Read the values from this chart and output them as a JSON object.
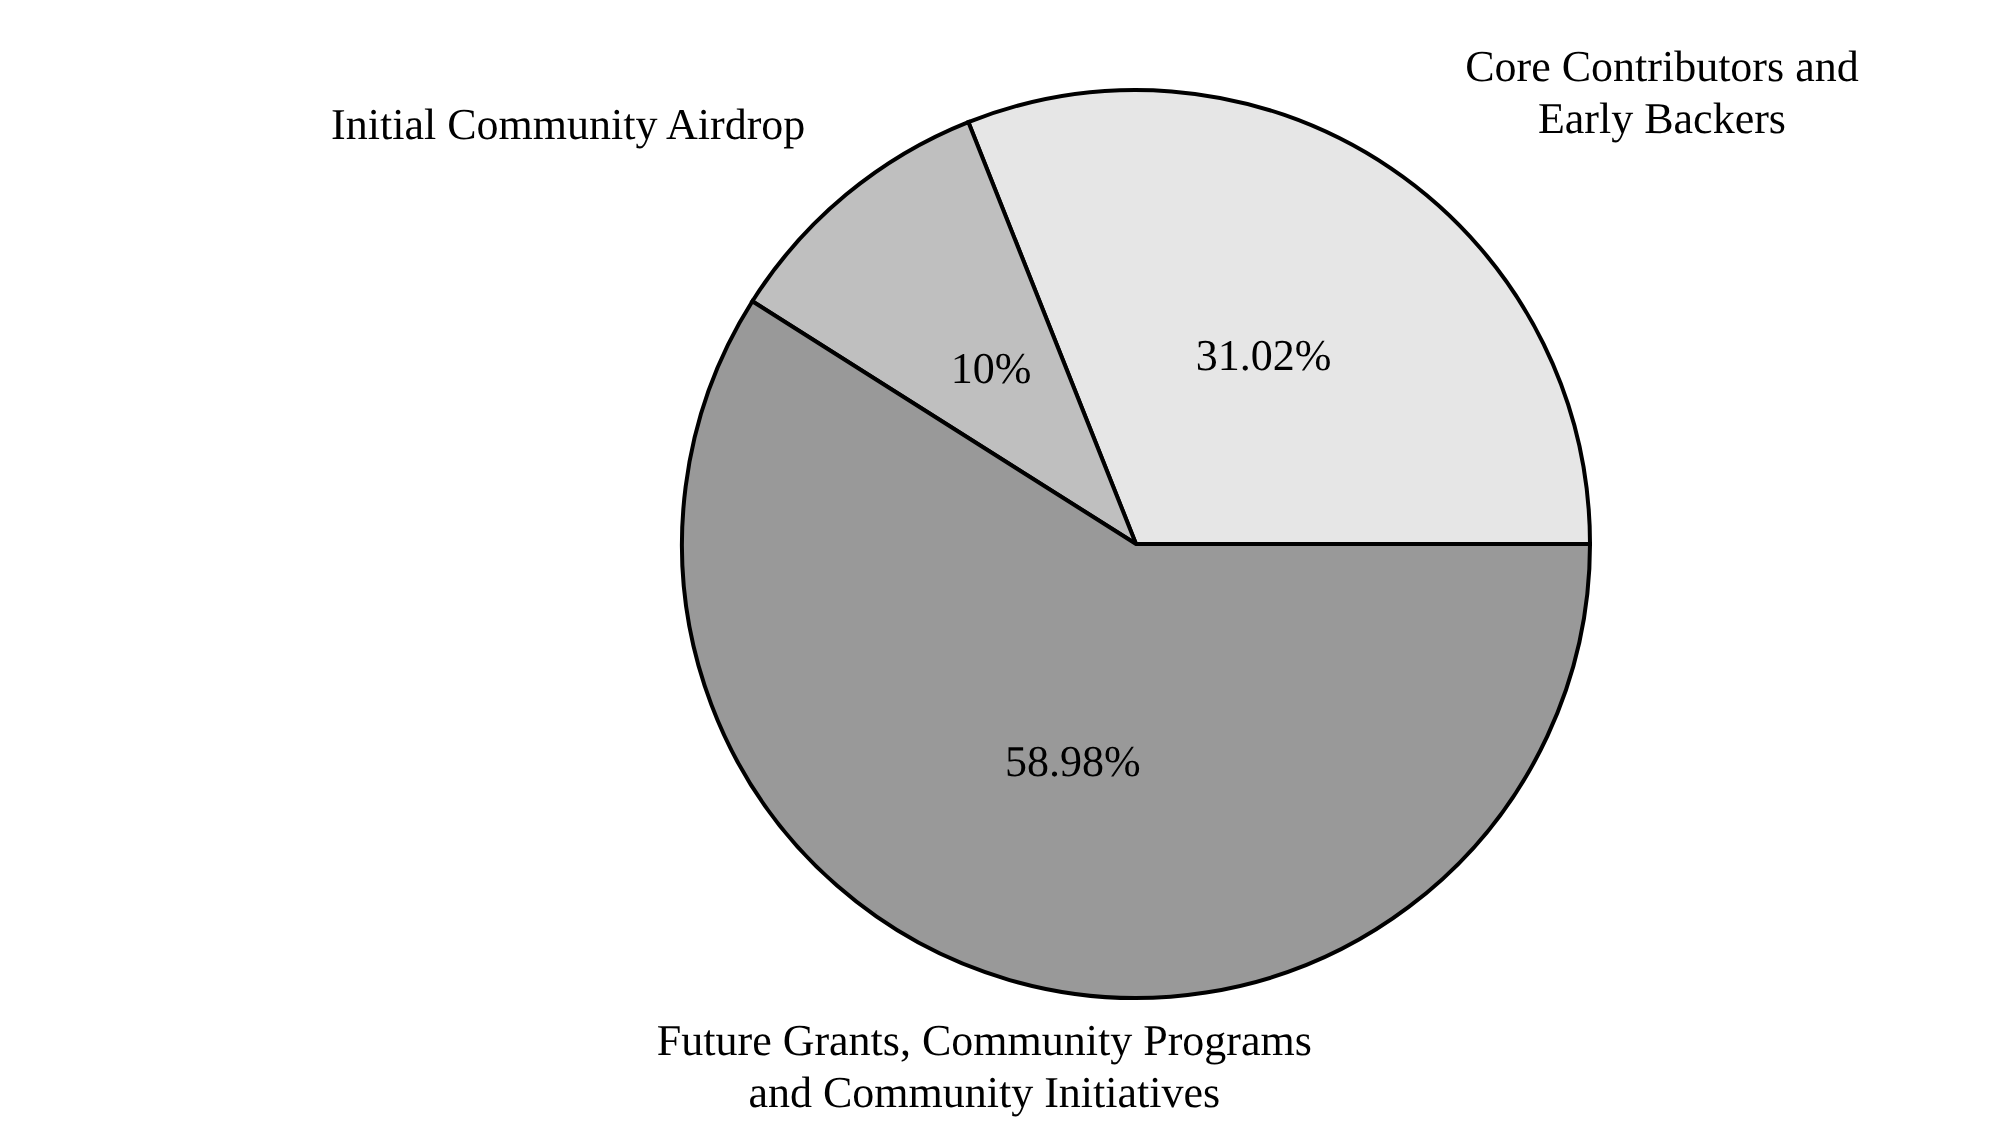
{
  "chart_data": {
    "type": "pie",
    "categories": [
      "Core Contributors and\nEarly Backers",
      "Initial Community Airdrop",
      "Future Grants, Community Programs\nand Community Initiatives"
    ],
    "values": [
      31.02,
      10,
      58.98
    ],
    "colors": [
      "#e6e6e6",
      "#bfbfbf",
      "#999999"
    ],
    "value_labels": [
      "31.02%",
      "10%",
      "58.98%"
    ],
    "legend": false
  }
}
